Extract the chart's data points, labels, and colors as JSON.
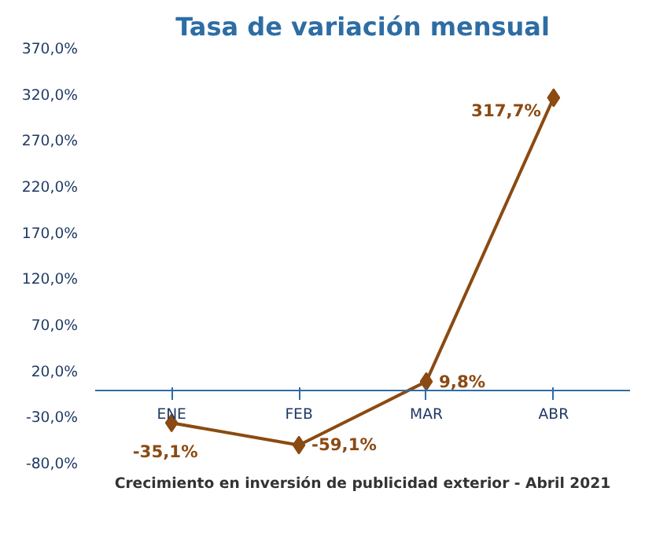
{
  "chart_data": {
    "type": "line",
    "title": "Tasa de variación mensual",
    "categories": [
      "ENE",
      "FEB",
      "MAR",
      "ABR"
    ],
    "series": [
      {
        "color": "#8b4a12",
        "values": [
          -35.1,
          -59.1,
          9.8,
          317.7
        ],
        "value_labels": [
          "-35,1%",
          "-59,1%",
          "9,8%",
          "317,7%"
        ]
      }
    ],
    "ylim": [
      -80,
      370
    ],
    "yticks": [
      {
        "value": -80,
        "label": "-80,0%"
      },
      {
        "value": -30,
        "label": "-30,0%"
      },
      {
        "value": 20,
        "label": "20,0%"
      },
      {
        "value": 70,
        "label": "70,0%"
      },
      {
        "value": 120,
        "label": "120,0%"
      },
      {
        "value": 170,
        "label": "170,0%"
      },
      {
        "value": 220,
        "label": "220,0%"
      },
      {
        "value": 270,
        "label": "270,0%"
      },
      {
        "value": 320,
        "label": "320,0%"
      },
      {
        "value": 370,
        "label": "370,0%"
      }
    ],
    "marker": "diamond",
    "grid": false,
    "annotations": [
      "Crecimiento en inversión de publicidad exterior - Abril 2021"
    ]
  }
}
